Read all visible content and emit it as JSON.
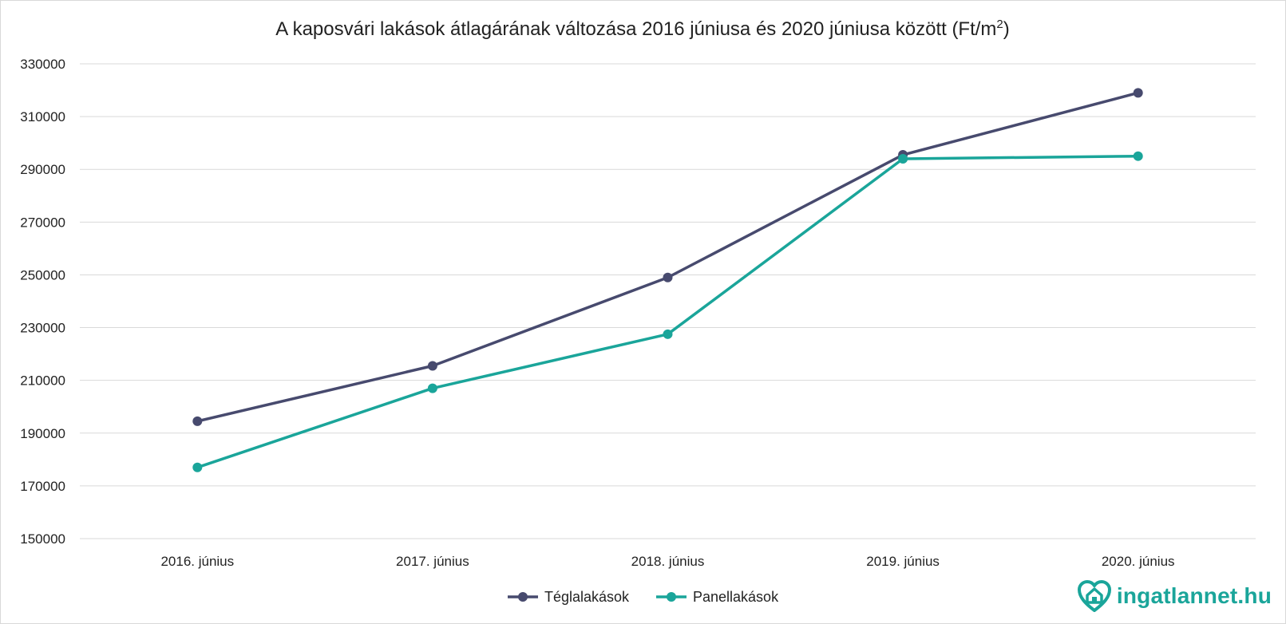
{
  "chart_data": {
    "type": "line",
    "title": "A kaposvári lakások átlagárának változása 2016 júniusa és 2020 júniusa között (Ft/m",
    "title_sup": "2",
    "title_end": ")",
    "categories": [
      "2016. június",
      "2017. június",
      "2018. június",
      "2019. június",
      "2020. június"
    ],
    "ylim": [
      150000,
      330000
    ],
    "yticks": [
      "150000",
      "170000",
      "190000",
      "210000",
      "230000",
      "250000",
      "270000",
      "290000",
      "310000",
      "330000"
    ],
    "grid": true,
    "legend_position": "bottom",
    "series": [
      {
        "name": "Téglalakások",
        "color": "#474a6e",
        "values": [
          194500,
          215500,
          249000,
          295500,
          319000
        ]
      },
      {
        "name": "Panellakások",
        "color": "#1aa59a",
        "values": [
          177000,
          207000,
          227500,
          294000,
          295000
        ]
      }
    ]
  },
  "logo": {
    "name": "ingatlannet",
    "tld": ".hu",
    "icon": "heart-house-icon",
    "color": "#1aa59a"
  }
}
